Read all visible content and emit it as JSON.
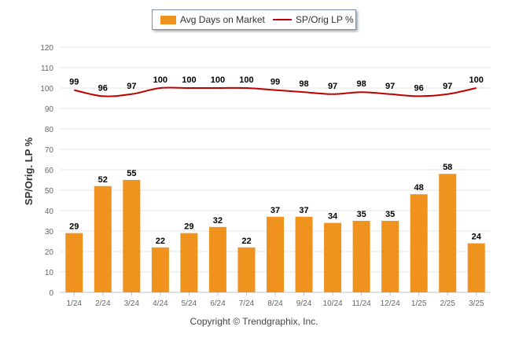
{
  "colors": {
    "bar": "#f0921e",
    "line": "#c00000",
    "grid": "#e6e6e6",
    "axis_text": "#666666"
  },
  "legend": {
    "bar_label": "Avg Days on Market",
    "line_label": "SP/Orig LP %"
  },
  "copyright": "Copyright © Trendgraphix, Inc.",
  "chart_data": {
    "type": "bar",
    "title": "",
    "xlabel": "",
    "ylabel": "SP/Orig. LP %",
    "ylim": [
      0,
      120
    ],
    "y_ticks": [
      "0",
      "10",
      "20",
      "30",
      "40",
      "50",
      "60",
      "70",
      "80",
      "90",
      "100",
      "110",
      "120"
    ],
    "grid": true,
    "legend_position": "top-center",
    "categories": [
      "1/24",
      "2/24",
      "3/24",
      "4/24",
      "5/24",
      "6/24",
      "7/24",
      "8/24",
      "9/24",
      "10/24",
      "11/24",
      "12/24",
      "1/25",
      "2/25",
      "3/25"
    ],
    "series": [
      {
        "name": "Avg Days on Market",
        "type": "bar",
        "values": [
          29,
          52,
          55,
          22,
          29,
          32,
          22,
          37,
          37,
          34,
          35,
          35,
          48,
          58,
          24
        ]
      },
      {
        "name": "SP/Orig LP %",
        "type": "line",
        "values": [
          99,
          96,
          97,
          100,
          100,
          100,
          100,
          99,
          98,
          97,
          98,
          97,
          96,
          97,
          100
        ]
      }
    ]
  }
}
